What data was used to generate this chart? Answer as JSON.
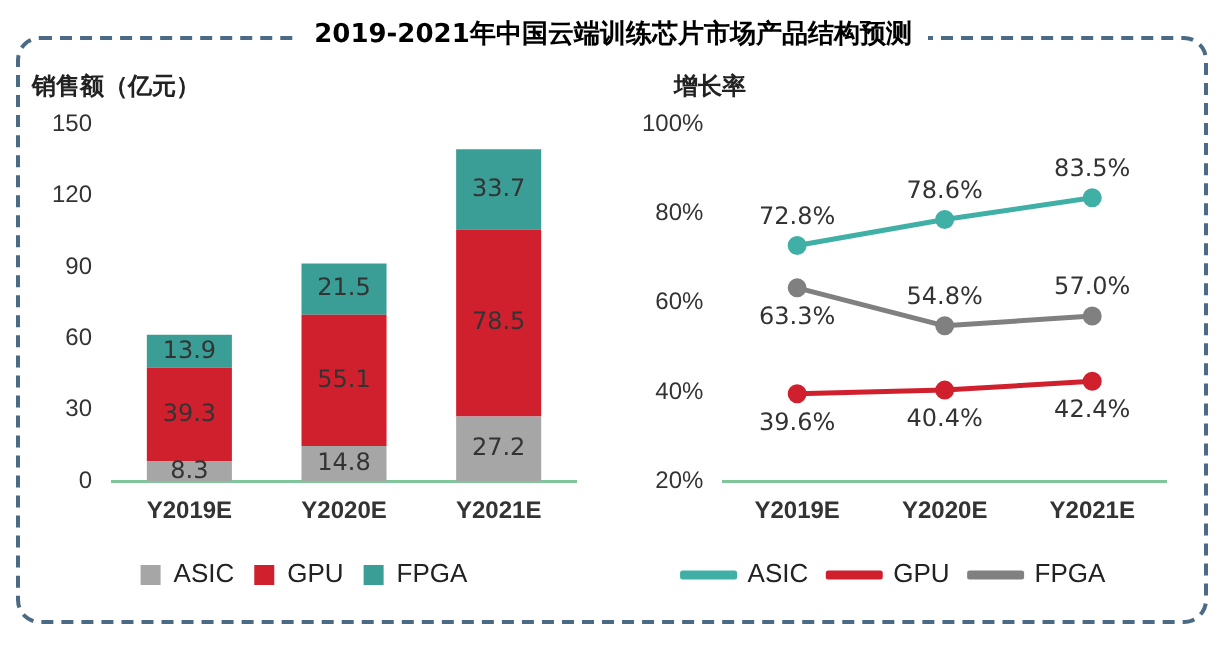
{
  "chart_data": [
    {
      "type": "bar",
      "title": "2019-2021年中国云端训练芯片市场产品结构预测",
      "ylabel": "销售额（亿元）",
      "categories": [
        "Y2019E",
        "Y2020E",
        "Y2021E"
      ],
      "stacked": true,
      "series": [
        {
          "name": "ASIC",
          "color": "#a6a6a6",
          "values": [
            8.3,
            14.8,
            27.2
          ]
        },
        {
          "name": "GPU",
          "color": "#d0202e",
          "values": [
            39.3,
            55.1,
            78.5
          ]
        },
        {
          "name": "FPGA",
          "color": "#3a9e96",
          "values": [
            13.9,
            21.5,
            33.7
          ]
        }
      ],
      "ylim": [
        0,
        150
      ],
      "yticks": [
        0,
        30,
        60,
        90,
        120,
        150
      ],
      "grid": false,
      "legend": "bottom",
      "data_labels": true
    },
    {
      "type": "line",
      "ylabel": "增长率",
      "categories": [
        "Y2019E",
        "Y2020E",
        "Y2021E"
      ],
      "series": [
        {
          "name": "ASIC",
          "color": "#40b0a6",
          "values": [
            72.8,
            78.6,
            83.5
          ],
          "value_labels": [
            "72.8%",
            "78.6%",
            "83.5%"
          ]
        },
        {
          "name": "GPU",
          "color": "#d0202e",
          "values": [
            39.6,
            40.4,
            42.4
          ],
          "value_labels": [
            "39.6%",
            "40.4%",
            "42.4%"
          ]
        },
        {
          "name": "FPGA",
          "color": "#808080",
          "values": [
            63.3,
            54.8,
            57.0
          ],
          "value_labels": [
            "63.3%",
            "54.8%",
            "57.0%"
          ]
        }
      ],
      "ylim": [
        20,
        100
      ],
      "yticks": [
        {
          "value": 20,
          "label": "20%"
        },
        {
          "value": 40,
          "label": "40%"
        },
        {
          "value": 60,
          "label": "60%"
        },
        {
          "value": 80,
          "label": "80%"
        },
        {
          "value": 100,
          "label": "100%"
        }
      ],
      "grid": false,
      "legend": "bottom",
      "marker": "circle",
      "line_style": "solid"
    }
  ]
}
